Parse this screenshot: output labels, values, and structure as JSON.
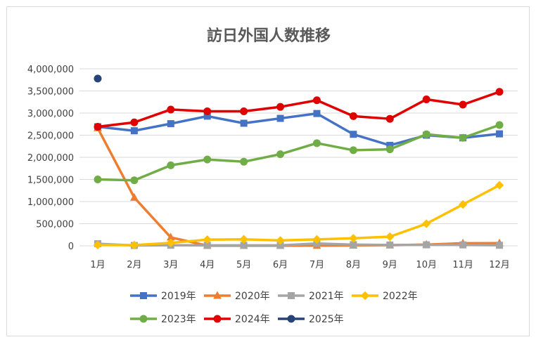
{
  "chart_data": {
    "type": "line",
    "title": "訪日外国人数推移",
    "categories": [
      "1月",
      "2月",
      "3月",
      "4月",
      "5月",
      "6月",
      "7月",
      "8月",
      "9月",
      "10月",
      "11月",
      "12月"
    ],
    "y_ticks": [
      "0",
      "500,000",
      "1,000,000",
      "1,500,000",
      "2,000,000",
      "2,500,000",
      "3,000,000",
      "3,500,000",
      "4,000,000"
    ],
    "ylim": [
      0,
      4000000
    ],
    "grid": true,
    "legend_position": "bottom",
    "series": [
      {
        "name": "2019年",
        "color": "#4472c4",
        "marker": "square",
        "values": [
          2690000,
          2600000,
          2760000,
          2930000,
          2770000,
          2880000,
          2990000,
          2520000,
          2270000,
          2500000,
          2440000,
          2530000
        ]
      },
      {
        "name": "2020年",
        "color": "#ed7d31",
        "marker": "triangle",
        "values": [
          2660000,
          1090000,
          190000,
          2900,
          1700,
          2600,
          3800,
          8700,
          13700,
          27400,
          56700,
          58700
        ]
      },
      {
        "name": "2021年",
        "color": "#a5a5a5",
        "marker": "square",
        "values": [
          46500,
          7400,
          12300,
          10900,
          10000,
          9300,
          51100,
          25900,
          17700,
          22100,
          20700,
          12100
        ]
      },
      {
        "name": "2022年",
        "color": "#ffc000",
        "marker": "diamond",
        "values": [
          17800,
          16700,
          66100,
          139500,
          147000,
          120400,
          144500,
          169900,
          206600,
          498600,
          934500,
          1370000
        ]
      },
      {
        "name": "2023年",
        "color": "#70ad47",
        "marker": "circle",
        "values": [
          1500000,
          1480000,
          1820000,
          1950000,
          1900000,
          2070000,
          2320000,
          2160000,
          2180000,
          2520000,
          2440000,
          2730000
        ]
      },
      {
        "name": "2024年",
        "color": "#e00000",
        "marker": "circle",
        "values": [
          2690000,
          2790000,
          3080000,
          3040000,
          3040000,
          3140000,
          3290000,
          2930000,
          2870000,
          3310000,
          3190000,
          3480000
        ]
      },
      {
        "name": "2025年",
        "color": "#264478",
        "marker": "circle",
        "values": [
          3780000,
          null,
          null,
          null,
          null,
          null,
          null,
          null,
          null,
          null,
          null,
          null
        ]
      }
    ]
  }
}
